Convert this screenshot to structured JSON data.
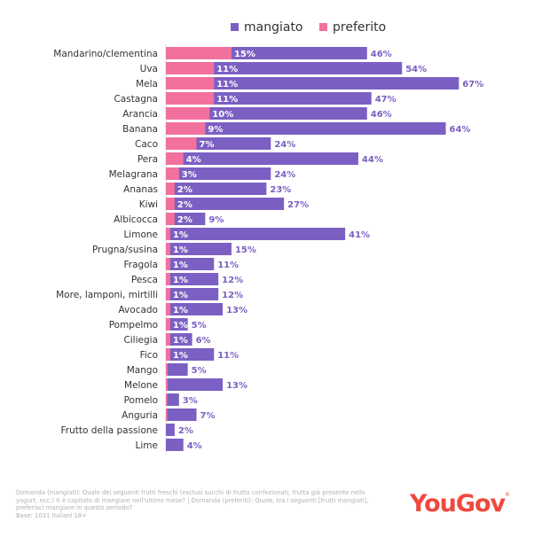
{
  "chart_data": {
    "type": "bar",
    "orientation": "horizontal",
    "overlay": true,
    "title": "",
    "xlabel": "",
    "ylabel": "",
    "xlim": [
      0,
      70
    ],
    "grid": false,
    "legend": {
      "placement": "top-center",
      "entries": [
        "mangiato",
        "preferito"
      ]
    },
    "categories": [
      "Mandarino/clementina",
      "Uva",
      "Mela",
      "Castagna",
      "Arancia",
      "Banana",
      "Caco",
      "Pera",
      "Melagrana",
      "Ananas",
      "Kiwi",
      "Albicocca",
      "Limone",
      "Prugna/susina",
      "Fragola",
      "Pesca",
      "More, lamponi, mirtilli",
      "Avocado",
      "Pompelmo",
      "Ciliegia",
      "Fico",
      "Mango",
      "Melone",
      "Pomelo",
      "Anguria",
      "Frutto della passione",
      "Lime"
    ],
    "series": [
      {
        "name": "mangiato",
        "color": "#7b5fc3",
        "values": [
          46,
          54,
          67,
          47,
          46,
          64,
          24,
          44,
          24,
          23,
          27,
          9,
          41,
          15,
          11,
          12,
          12,
          13,
          5,
          6,
          11,
          5,
          13,
          3,
          7,
          2,
          4
        ],
        "labels": [
          "46%",
          "54%",
          "67%",
          "47%",
          "46%",
          "64%",
          "24%",
          "44%",
          "24%",
          "23%",
          "27%",
          "9%",
          "41%",
          "15%",
          "11%",
          "12%",
          "12%",
          "13%",
          "5%",
          "6%",
          "11%",
          "5%",
          "13%",
          "3%",
          "7%",
          "2%",
          "4%"
        ]
      },
      {
        "name": "preferito",
        "color": "#f2709e",
        "values": [
          15,
          11,
          11,
          11,
          10,
          9,
          7,
          4,
          3,
          2,
          2,
          2,
          1,
          1,
          1,
          1,
          1,
          1,
          1,
          1,
          1,
          0.4,
          0.4,
          0.2,
          0.2,
          0,
          0
        ],
        "labels": [
          "15%",
          "11%",
          "11%",
          "11%",
          "10%",
          "9%",
          "7%",
          "4%",
          "3%",
          "2%",
          "2%",
          "2%",
          "1%",
          "1%",
          "1%",
          "1%",
          "1%",
          "1%",
          "1%",
          "1%",
          "1%",
          "",
          "",
          "",
          "",
          "",
          ""
        ]
      }
    ]
  },
  "footer": {
    "note_lines": [
      "Domanda (mangiati): Quale dei seguenti frutti freschi (esclusi succhi di frutta confezionati, frutta già presente nello",
      "yogurt, ecc.) ti è capitato di mangiare nell'ultimo mese? | Domanda (preferiti): Quale, tra i seguenti [frutti mangiati],",
      "preferisci mangiare in questo periodo?",
      "Base: 1031 italiani 18+"
    ],
    "logo_text": "YouGov",
    "logo_mark": "®",
    "logo_color": "#f0483e"
  }
}
